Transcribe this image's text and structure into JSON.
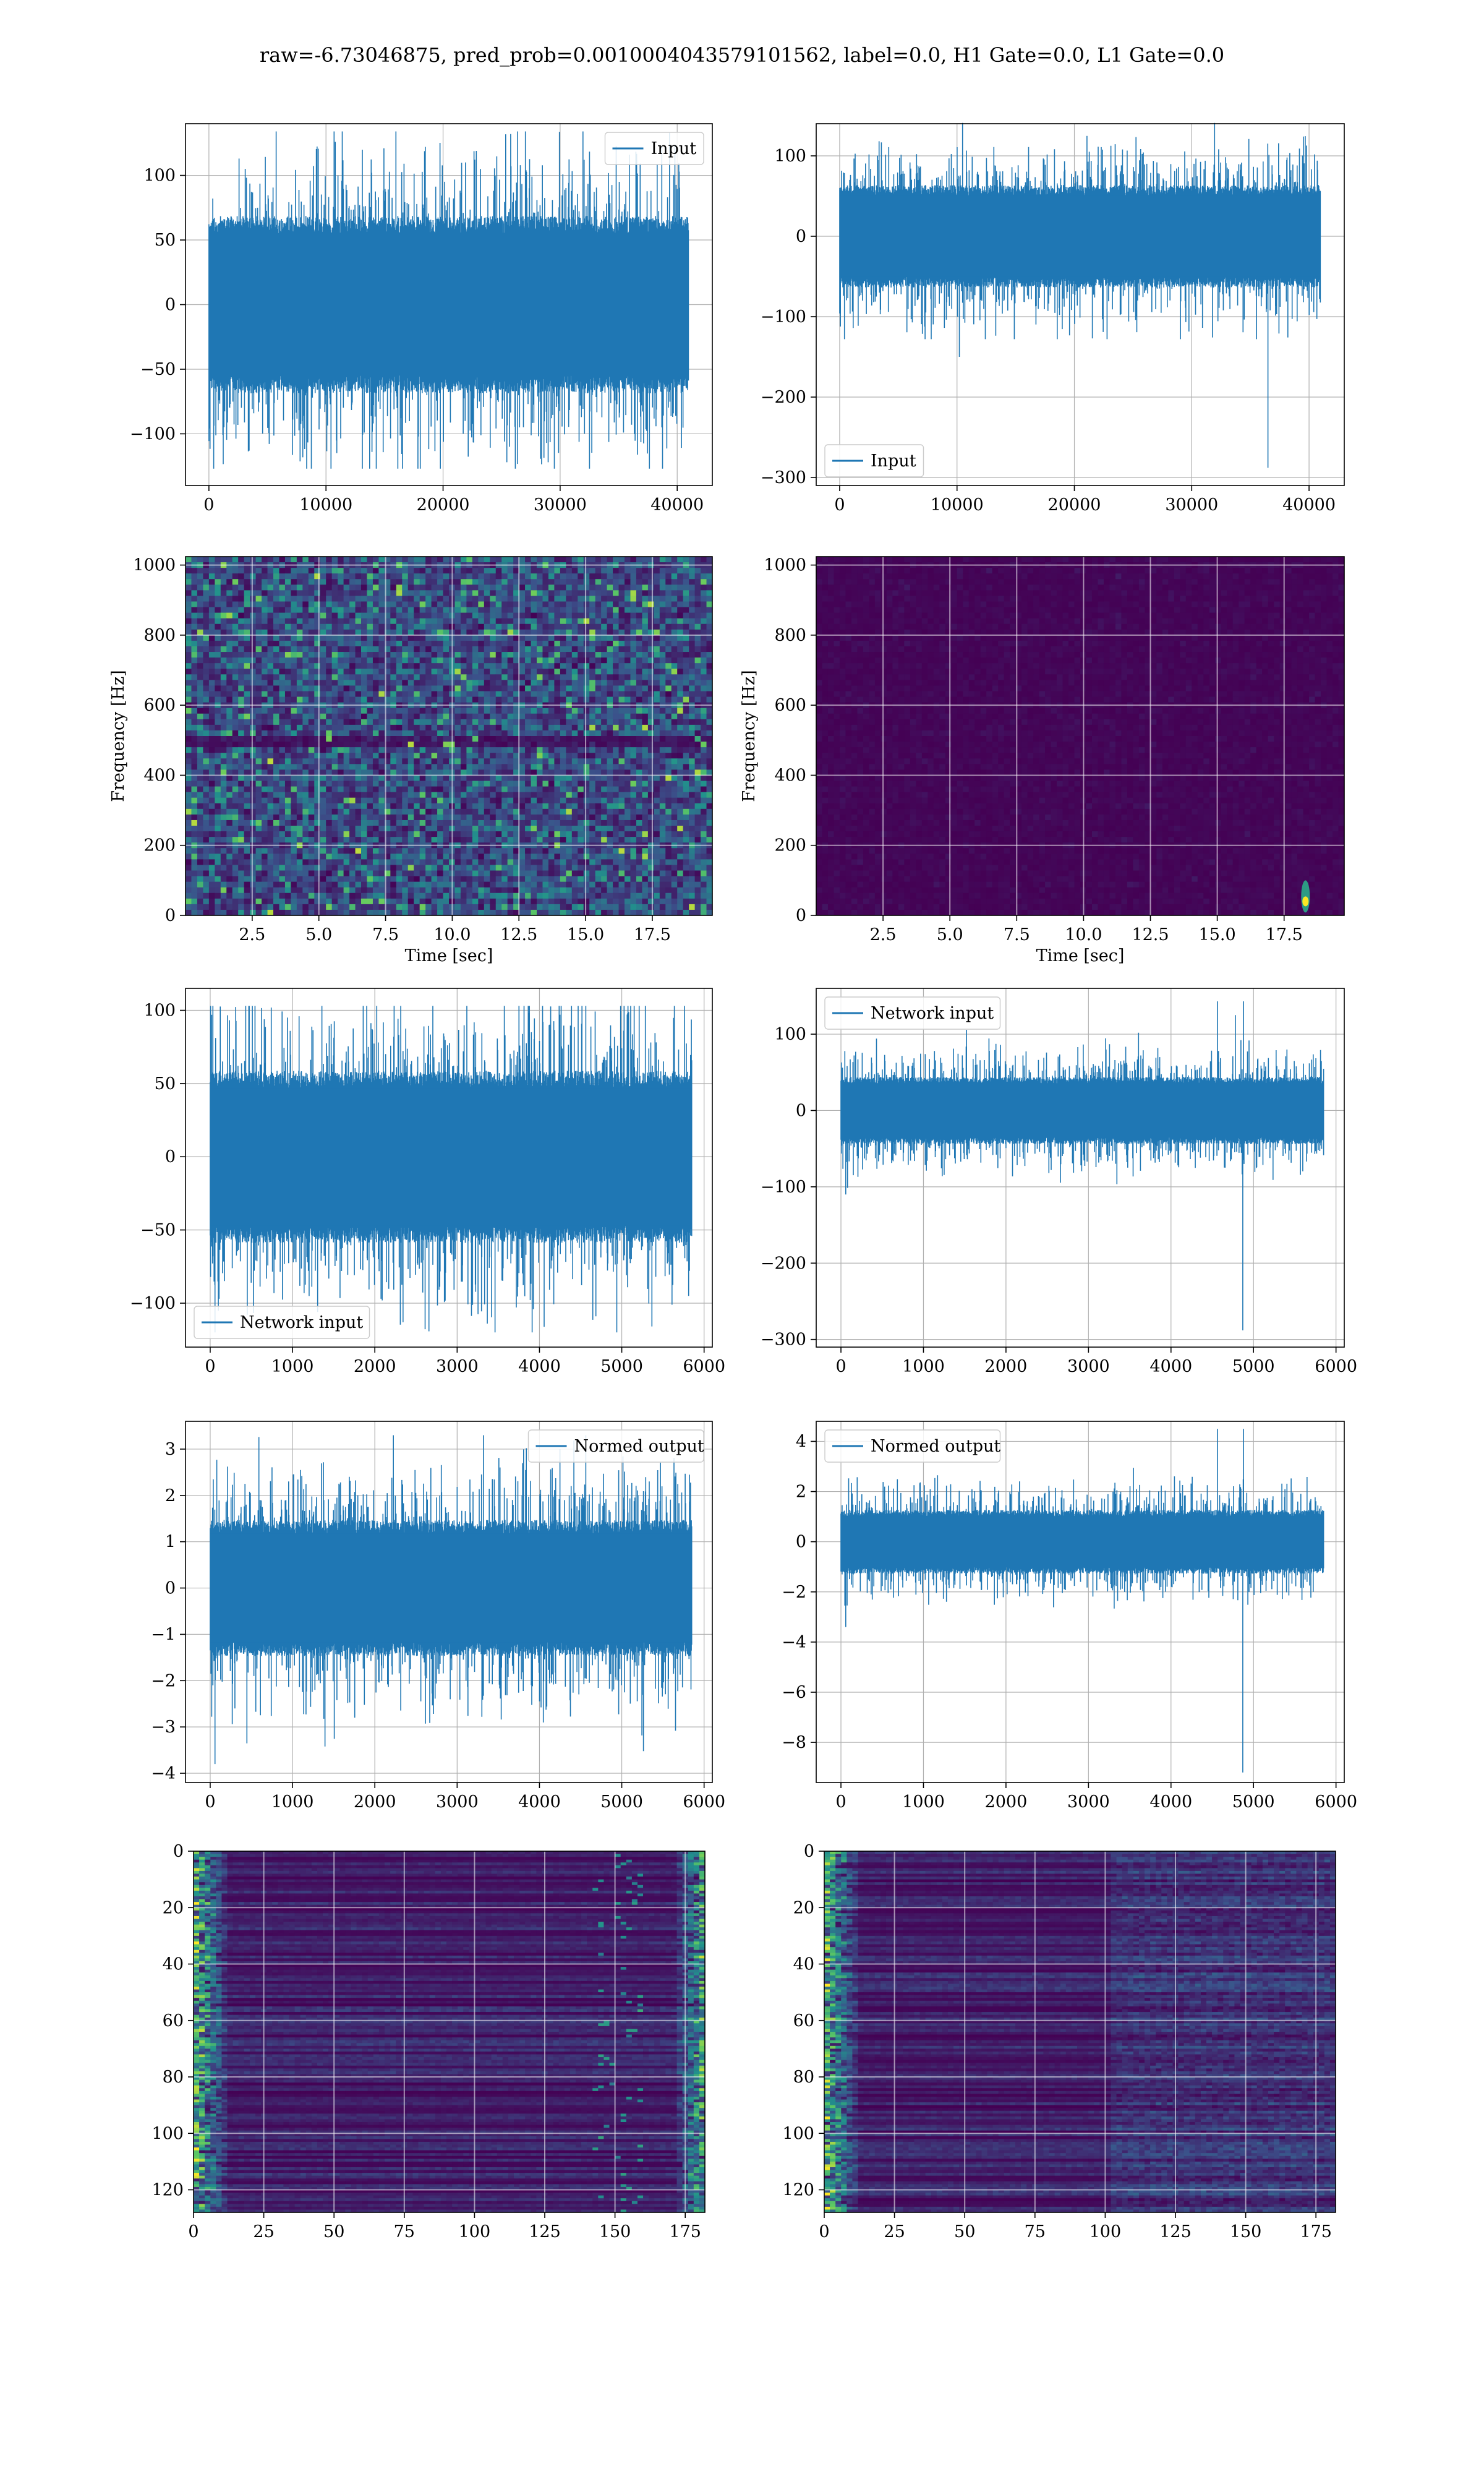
{
  "figure": {
    "suptitle": "raw=-6.73046875, pred_prob=0.0010004043579101562, label=0.0, H1 Gate=0.0, L1 Gate=0.0",
    "colors": {
      "line": "#1f77b4",
      "grid": "#b0b0b0",
      "viridis_low": "#440154",
      "viridis_mid": "#21918c",
      "viridis_high": "#fde725"
    }
  },
  "chart_data": [
    {
      "id": "p1",
      "type": "line",
      "envelope": true,
      "xlim": [
        -2000,
        43000
      ],
      "ylim": [
        -140,
        140
      ],
      "xticks": [
        0,
        10000,
        20000,
        30000,
        40000
      ],
      "yticks": [
        -100,
        -50,
        0,
        50,
        100
      ],
      "xlabel": "",
      "ylabel": "",
      "series": [
        {
          "name": "Input",
          "x_range": [
            0,
            40960
          ],
          "band": [
            -70,
            70
          ],
          "peak_max": 134,
          "peak_min": -127,
          "spikes": []
        }
      ],
      "legend": "upper right",
      "grid": true
    },
    {
      "id": "p2",
      "type": "line",
      "envelope": true,
      "xlim": [
        -2000,
        43000
      ],
      "ylim": [
        -310,
        140
      ],
      "xticks": [
        0,
        10000,
        20000,
        30000,
        40000
      ],
      "yticks": [
        -300,
        -200,
        -100,
        0,
        100
      ],
      "xlabel": "",
      "ylabel": "",
      "series": [
        {
          "name": "Input",
          "x_range": [
            0,
            40960
          ],
          "band": [
            -65,
            65
          ],
          "peak_max": 141,
          "peak_min": -128,
          "spikes": [
            {
              "x": 36500,
              "y": -288
            },
            {
              "x": 10200,
              "y": -150
            }
          ]
        }
      ],
      "legend": "lower left",
      "grid": true
    },
    {
      "id": "p3",
      "type": "heatmap",
      "xlim": [
        0.0,
        19.75
      ],
      "ylim": [
        0,
        1024
      ],
      "xticks": [
        2.5,
        5.0,
        7.5,
        10.0,
        12.5,
        15.0,
        17.5
      ],
      "yticks": [
        0,
        200,
        400,
        600,
        800,
        1000
      ],
      "xlabel": "Time [sec]",
      "ylabel": "Frequency [Hz]",
      "description_values": {
        "colormap": "viridis",
        "intensity_mean": 0.28,
        "hot_spot": null
      },
      "grid": true
    },
    {
      "id": "p4",
      "type": "heatmap",
      "xlim": [
        0.0,
        19.75
      ],
      "ylim": [
        0,
        1024
      ],
      "xticks": [
        2.5,
        5.0,
        7.5,
        10.0,
        12.5,
        15.0,
        17.5
      ],
      "yticks": [
        0,
        200,
        400,
        600,
        800,
        1000
      ],
      "xlabel": "Time [sec]",
      "ylabel": "Frequency [Hz]",
      "description_values": {
        "colormap": "viridis",
        "intensity_mean": 0.03,
        "hot_spot": {
          "t": 18.3,
          "f": 40
        }
      },
      "grid": true
    },
    {
      "id": "p5",
      "type": "line",
      "envelope": true,
      "xlim": [
        -300,
        6100
      ],
      "ylim": [
        -130,
        115
      ],
      "xticks": [
        0,
        1000,
        2000,
        3000,
        4000,
        5000,
        6000
      ],
      "yticks": [
        -100,
        -50,
        0,
        50,
        100
      ],
      "xlabel": "",
      "ylabel": "",
      "series": [
        {
          "name": "Network input",
          "x_range": [
            0,
            5850
          ],
          "band": [
            -60,
            60
          ],
          "peak_max": 103,
          "peak_min": -120,
          "spikes": []
        }
      ],
      "legend": "lower left",
      "grid": true
    },
    {
      "id": "p6",
      "type": "line",
      "envelope": true,
      "xlim": [
        -300,
        6100
      ],
      "ylim": [
        -310,
        160
      ],
      "xticks": [
        0,
        1000,
        2000,
        3000,
        4000,
        5000,
        6000
      ],
      "yticks": [
        -300,
        -200,
        -100,
        0,
        100
      ],
      "xlabel": "",
      "ylabel": "",
      "series": [
        {
          "name": "Network input",
          "x_range": [
            0,
            5850
          ],
          "band": [
            -45,
            45
          ],
          "peak_max": 143,
          "peak_min": -110,
          "spikes": [
            {
              "x": 4870,
              "y": -288
            },
            {
              "x": 4880,
              "y": 143
            },
            {
              "x": 4780,
              "y": 125
            }
          ]
        }
      ],
      "legend": "upper left",
      "grid": true
    },
    {
      "id": "p7",
      "type": "line",
      "envelope": true,
      "xlim": [
        -300,
        6100
      ],
      "ylim": [
        -4.2,
        3.6
      ],
      "xticks": [
        0,
        1000,
        2000,
        3000,
        4000,
        5000,
        6000
      ],
      "yticks": [
        -4,
        -3,
        -2,
        -1,
        0,
        1,
        2,
        3
      ],
      "xlabel": "",
      "ylabel": "",
      "series": [
        {
          "name": "Normed output",
          "x_range": [
            0,
            5850
          ],
          "band": [
            -1.5,
            1.5
          ],
          "peak_max": 3.3,
          "peak_min": -3.8,
          "spikes": []
        }
      ],
      "legend": "upper right",
      "grid": true
    },
    {
      "id": "p8",
      "type": "line",
      "envelope": true,
      "xlim": [
        -300,
        6100
      ],
      "ylim": [
        -9.6,
        4.8
      ],
      "xticks": [
        0,
        1000,
        2000,
        3000,
        4000,
        5000,
        6000
      ],
      "yticks": [
        -8,
        -6,
        -4,
        -2,
        0,
        2,
        4
      ],
      "xlabel": "",
      "ylabel": "",
      "series": [
        {
          "name": "Normed output",
          "x_range": [
            0,
            5850
          ],
          "band": [
            -1.3,
            1.3
          ],
          "peak_max": 4.5,
          "peak_min": -3.4,
          "spikes": [
            {
              "x": 4870,
              "y": -9.2
            },
            {
              "x": 4880,
              "y": 4.5
            }
          ]
        }
      ],
      "legend": "upper left",
      "grid": true
    },
    {
      "id": "p9",
      "type": "heatmap",
      "xlim": [
        0,
        182
      ],
      "ylim": [
        128,
        0
      ],
      "xticks": [
        0,
        25,
        50,
        75,
        100,
        125,
        150,
        175
      ],
      "yticks": [
        0,
        20,
        40,
        60,
        80,
        100,
        120
      ],
      "xlabel": "",
      "ylabel": "",
      "description_values": {
        "colormap": "viridis",
        "rows": 128,
        "cols": 182,
        "edge_activity": "both"
      },
      "grid": true
    },
    {
      "id": "p10",
      "type": "heatmap",
      "xlim": [
        0,
        182
      ],
      "ylim": [
        128,
        0
      ],
      "xticks": [
        0,
        25,
        50,
        75,
        100,
        125,
        150,
        175
      ],
      "yticks": [
        0,
        20,
        40,
        60,
        80,
        100,
        120
      ],
      "xlabel": "",
      "ylabel": "",
      "description_values": {
        "colormap": "viridis",
        "rows": 128,
        "cols": 182,
        "edge_activity": "left"
      },
      "grid": true
    }
  ]
}
